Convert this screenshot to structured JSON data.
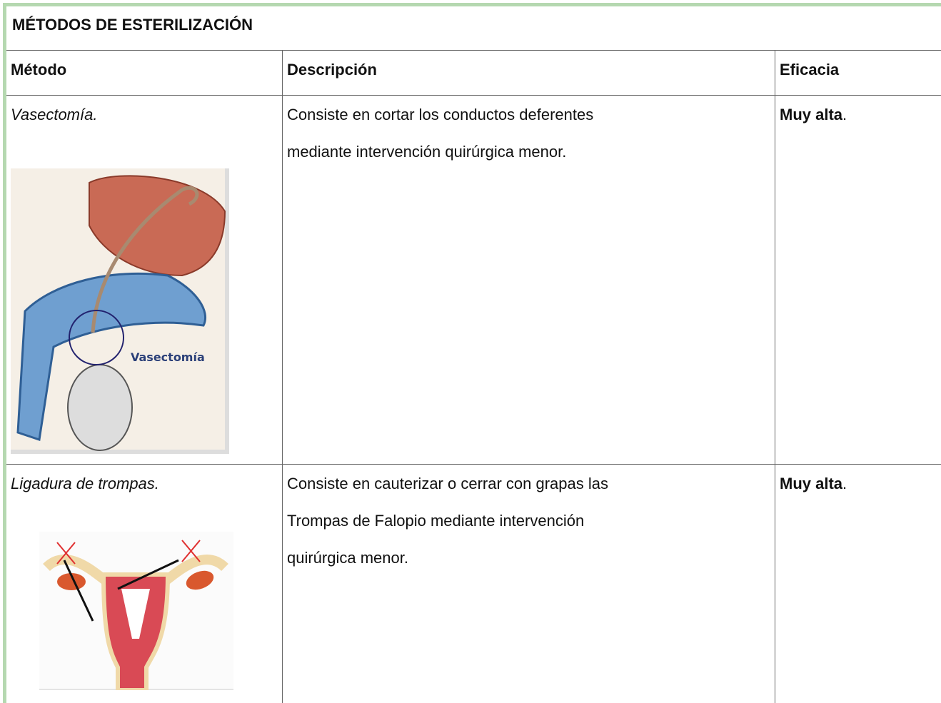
{
  "table": {
    "title": "MÉTODOS DE ESTERILIZACIÓN",
    "header": [
      "Método",
      "Descripción",
      "Eficacia"
    ],
    "rows": [
      {
        "method": "Vasectomía.",
        "image_label": "Vasectomía",
        "description": [
          "Consiste en cortar los conductos deferentes",
          "mediante intervención quirúrgica menor."
        ],
        "efficacy": "Muy alta",
        "efficacy_suffix": "."
      },
      {
        "method": "Ligadura de trompas.",
        "description": [
          "Consiste en cauterizar o cerrar con grapas las",
          "Trompas de Falopio mediante intervención",
          "quirúrgica menor."
        ],
        "efficacy": "Muy alta",
        "efficacy_suffix": "."
      }
    ]
  }
}
